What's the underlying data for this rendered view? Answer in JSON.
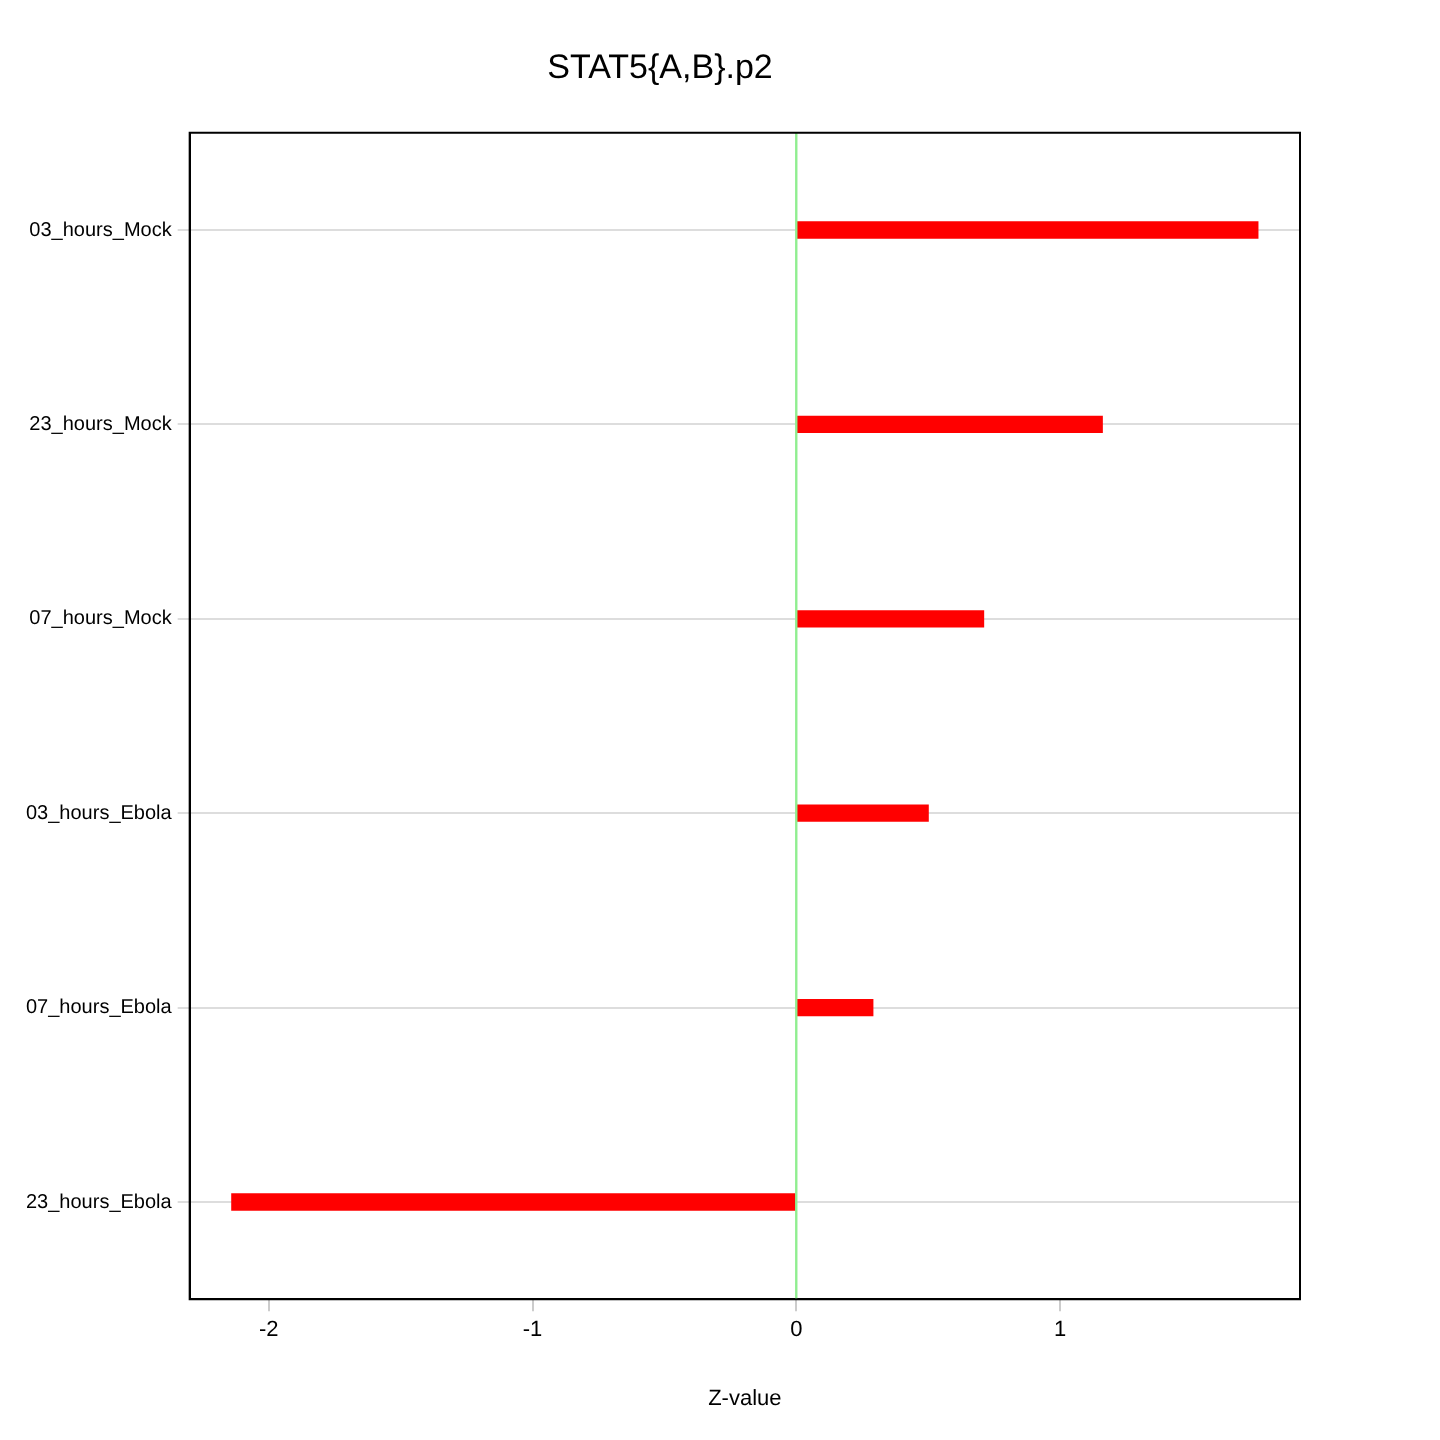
{
  "chart_data": {
    "type": "bar",
    "orientation": "horizontal",
    "title": "STAT5{A,B}.p2",
    "xlabel": "Z-value",
    "categories": [
      "03_hours_Mock",
      "23_hours_Mock",
      "07_hours_Mock",
      "03_hours_Ebola",
      "07_hours_Ebola",
      "23_hours_Ebola"
    ],
    "values": [
      1.75,
      1.16,
      0.71,
      0.5,
      0.29,
      -2.14
    ],
    "color": "#ff0000",
    "xlim": [
      -2.3,
      1.91
    ],
    "xticks": [
      -2,
      -1,
      0,
      1
    ],
    "grid": "y",
    "ref_lines": [
      {
        "axis": "x",
        "value": 0,
        "color": "#90ee90"
      }
    ]
  }
}
